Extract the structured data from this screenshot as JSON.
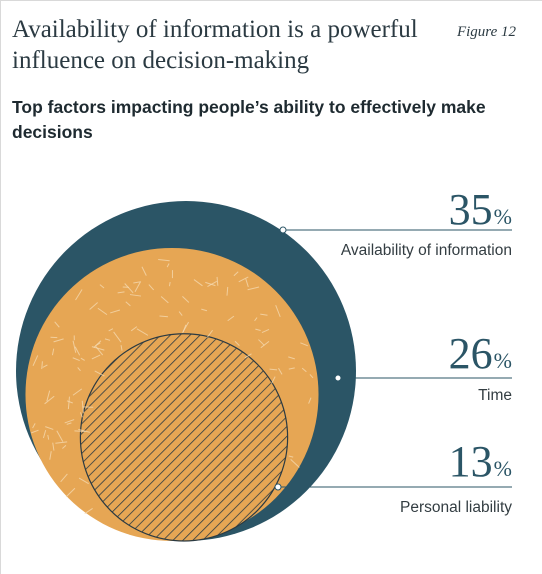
{
  "header": {
    "title": "Availability of information is a powerful influence on decision-making",
    "figure_label": "Figure 12"
  },
  "chart_data": {
    "type": "area",
    "title": "Top factors impacting people’s ability to effectively make decisions",
    "unit": "%",
    "categories": [
      "Availability of information",
      "Time",
      "Personal liability"
    ],
    "values": [
      35,
      26,
      13
    ],
    "value_labels": [
      "35",
      "26",
      "13"
    ],
    "colors": [
      "#2b5566",
      "#e6a654",
      "#e6a654"
    ]
  }
}
